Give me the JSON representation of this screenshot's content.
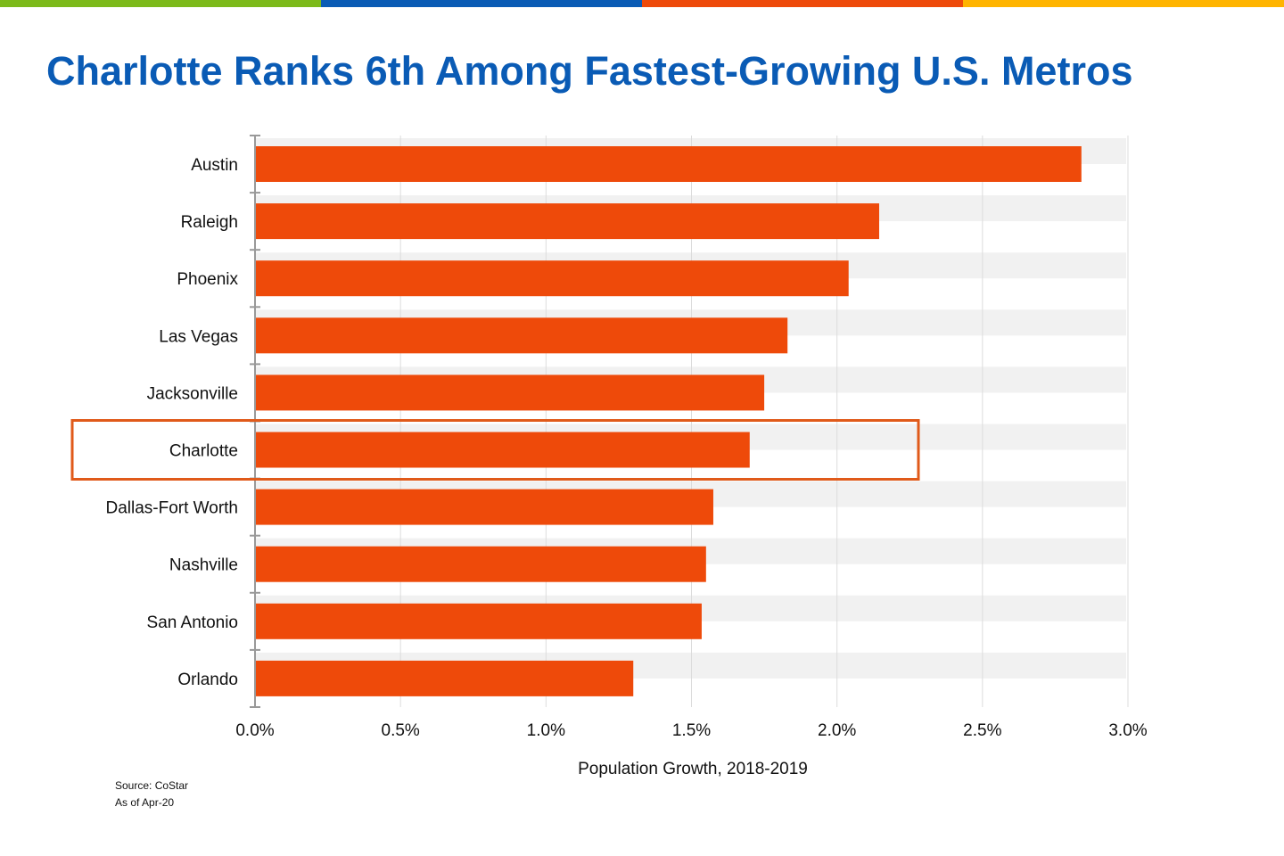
{
  "title": "Charlotte Ranks 6th Among Fastest-Growing U.S. Metros",
  "header_stripe_colors": [
    "#7cba1a",
    "#0a5bb5",
    "#ee4a0a",
    "#ffb400"
  ],
  "source": "Source: CoStar",
  "as_of": "As of Apr-20",
  "chart_data": {
    "type": "bar",
    "orientation": "horizontal",
    "categories": [
      "Austin",
      "Raleigh",
      "Phoenix",
      "Las Vegas",
      "Jacksonville",
      "Charlotte",
      "Dallas-Fort Worth",
      "Nashville",
      "San Antonio",
      "Orlando"
    ],
    "values": [
      2.84,
      2.145,
      2.04,
      1.83,
      1.75,
      1.7,
      1.575,
      1.55,
      1.535,
      1.3
    ],
    "unit": "%",
    "xlabel": "Population Growth, 2018-2019",
    "xlim": [
      0,
      3.0
    ],
    "xticks": [
      "0.0%",
      "0.5%",
      "1.0%",
      "1.5%",
      "2.0%",
      "2.5%",
      "3.0%"
    ],
    "grid": true,
    "bar_color": "#ee4a0a",
    "highlight": "Charlotte",
    "highlight_color": "#e05a1a"
  }
}
